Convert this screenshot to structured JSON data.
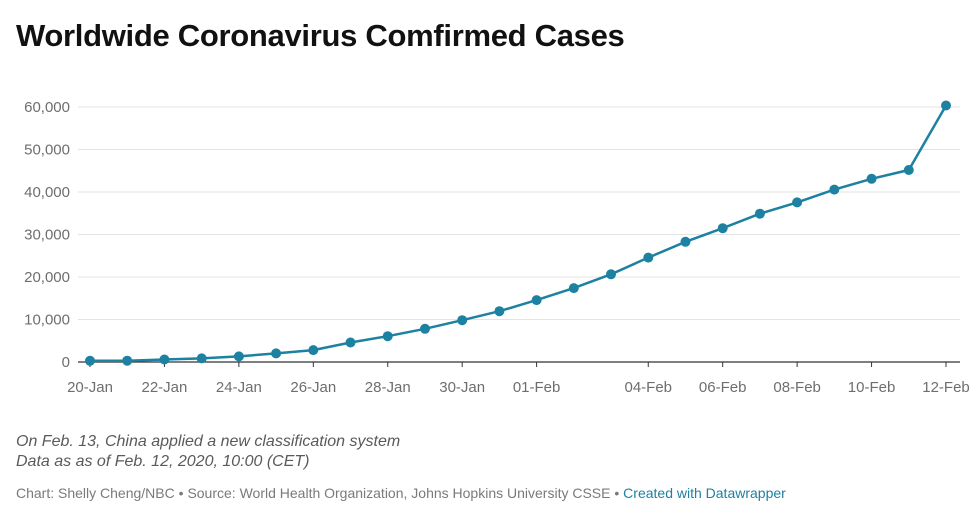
{
  "header": {
    "title": "Worldwide Coronavirus Comfirmed Cases"
  },
  "notes": {
    "line1": "On Feb. 13, China applied a new classification system",
    "line2": "Data as as of Feb. 12, 2020, 10:00 (CET)"
  },
  "footer": {
    "credit": "Chart: Shelly Cheng/NBC",
    "separator": " • ",
    "source": "Source: World Health Organization, Johns Hopkins University CSSE",
    "link_text": "Created with Datawrapper"
  },
  "colors": {
    "line": "#1d81a2",
    "grid": "#e3e3e3",
    "axis": "#333333"
  },
  "chart_data": {
    "type": "line",
    "title": "Worldwide Coronavirus Comfirmed Cases",
    "xlabel": "",
    "ylabel": "",
    "x_ticks": [
      "20-Jan",
      "22-Jan",
      "24-Jan",
      "26-Jan",
      "28-Jan",
      "30-Jan",
      "01-Feb",
      "04-Feb",
      "06-Feb",
      "08-Feb",
      "10-Feb",
      "12-Feb"
    ],
    "y_ticks": [
      "0",
      "10,000",
      "20,000",
      "30,000",
      "40,000",
      "50,000",
      "60,000"
    ],
    "ylim": [
      0,
      60000
    ],
    "grid": true,
    "points": [
      {
        "x": "2020-01-20",
        "y": 282
      },
      {
        "x": "2020-01-21",
        "y": 314
      },
      {
        "x": "2020-01-22",
        "y": 581
      },
      {
        "x": "2020-01-23",
        "y": 846
      },
      {
        "x": "2020-01-24",
        "y": 1320
      },
      {
        "x": "2020-01-25",
        "y": 2014
      },
      {
        "x": "2020-01-26",
        "y": 2798
      },
      {
        "x": "2020-01-27",
        "y": 4593
      },
      {
        "x": "2020-01-28",
        "y": 6065
      },
      {
        "x": "2020-01-29",
        "y": 7818
      },
      {
        "x": "2020-01-30",
        "y": 9826
      },
      {
        "x": "2020-01-31",
        "y": 11953
      },
      {
        "x": "2020-02-01",
        "y": 14557
      },
      {
        "x": "2020-02-02",
        "y": 17391
      },
      {
        "x": "2020-02-03",
        "y": 20630
      },
      {
        "x": "2020-02-04",
        "y": 24554
      },
      {
        "x": "2020-02-05",
        "y": 28276
      },
      {
        "x": "2020-02-06",
        "y": 31481
      },
      {
        "x": "2020-02-07",
        "y": 34886
      },
      {
        "x": "2020-02-08",
        "y": 37558
      },
      {
        "x": "2020-02-09",
        "y": 40554
      },
      {
        "x": "2020-02-10",
        "y": 43103
      },
      {
        "x": "2020-02-11",
        "y": 45171
      },
      {
        "x": "2020-02-12",
        "y": 60363
      }
    ]
  }
}
